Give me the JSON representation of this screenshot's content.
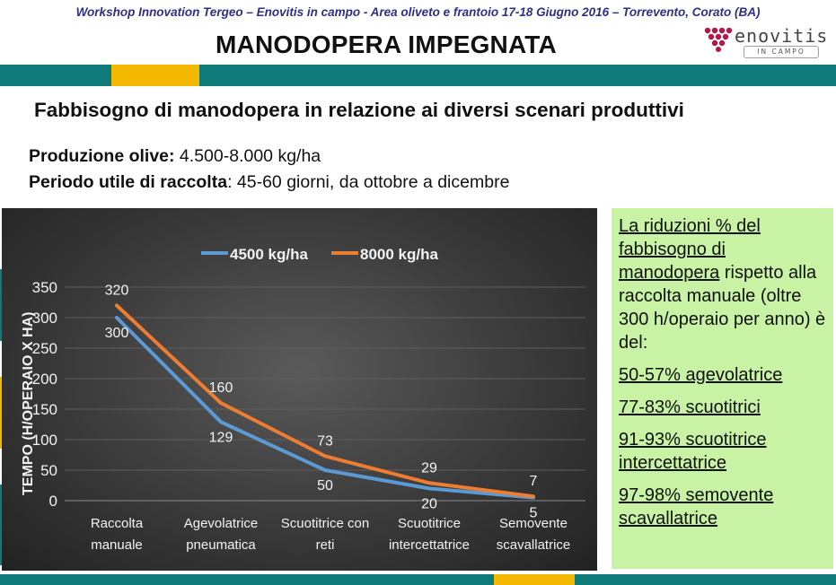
{
  "header": {
    "workshop": "Workshop Innovation Tergeo – Enovitis in campo - Area oliveto e frantoio 17-18 Giugno 2016 – Torrevento, Corato (BA)",
    "title": "MANODOPERA IMPEGNATA",
    "logo_text": "enovitis",
    "logo_sub": "IN CAMPO"
  },
  "subtitle": "Fabbisogno di manodopera in relazione ai diversi scenari produttivi",
  "info": {
    "line1_label": "Produzione olive:",
    "line1_value": " 4.500-8.000 kg/ha",
    "line2_label": "Periodo utile di raccolta",
    "line2_value": ": 45-60 giorni, da ottobre a dicembre"
  },
  "colors": {
    "teal": "#0e7b7a",
    "gold": "#f5b800",
    "series_4500": "#5b9bd5",
    "series_8000": "#ed7d31",
    "green_box": "#c8f2a4"
  },
  "chart_data": {
    "type": "line",
    "ylabel": "TEMPO (H/OPERAIO X HA)",
    "ylim": [
      0,
      350
    ],
    "yticks": [
      0,
      50,
      100,
      150,
      200,
      250,
      300,
      350
    ],
    "categories": [
      [
        "Raccolta",
        "manuale"
      ],
      [
        "Agevolatrice",
        "pneumatica"
      ],
      [
        "Scuotitrice con",
        "reti"
      ],
      [
        "Scuotitrice",
        "intercettatrice"
      ],
      [
        "Semovente",
        "scavallatrice"
      ]
    ],
    "series": [
      {
        "name": "4500 kg/ha",
        "values": [
          300,
          129,
          50,
          20,
          5
        ],
        "color": "#5b9bd5"
      },
      {
        "name": "8000 kg/ha",
        "values": [
          320,
          160,
          73,
          29,
          7
        ],
        "color": "#ed7d31"
      }
    ],
    "legend": "top",
    "grid": true
  },
  "side_box": {
    "intro_underlined": "La riduzioni % del fabbisogno di manodopera",
    "intro_rest": " rispetto alla raccolta manuale (oltre 300 h/operaio per anno) è del:",
    "items": [
      "50-57% agevolatrice",
      "77-83%  scuotitrici",
      "91-93% scuotitrice intercettatrice",
      "97-98% semovente scavallatrice"
    ]
  }
}
